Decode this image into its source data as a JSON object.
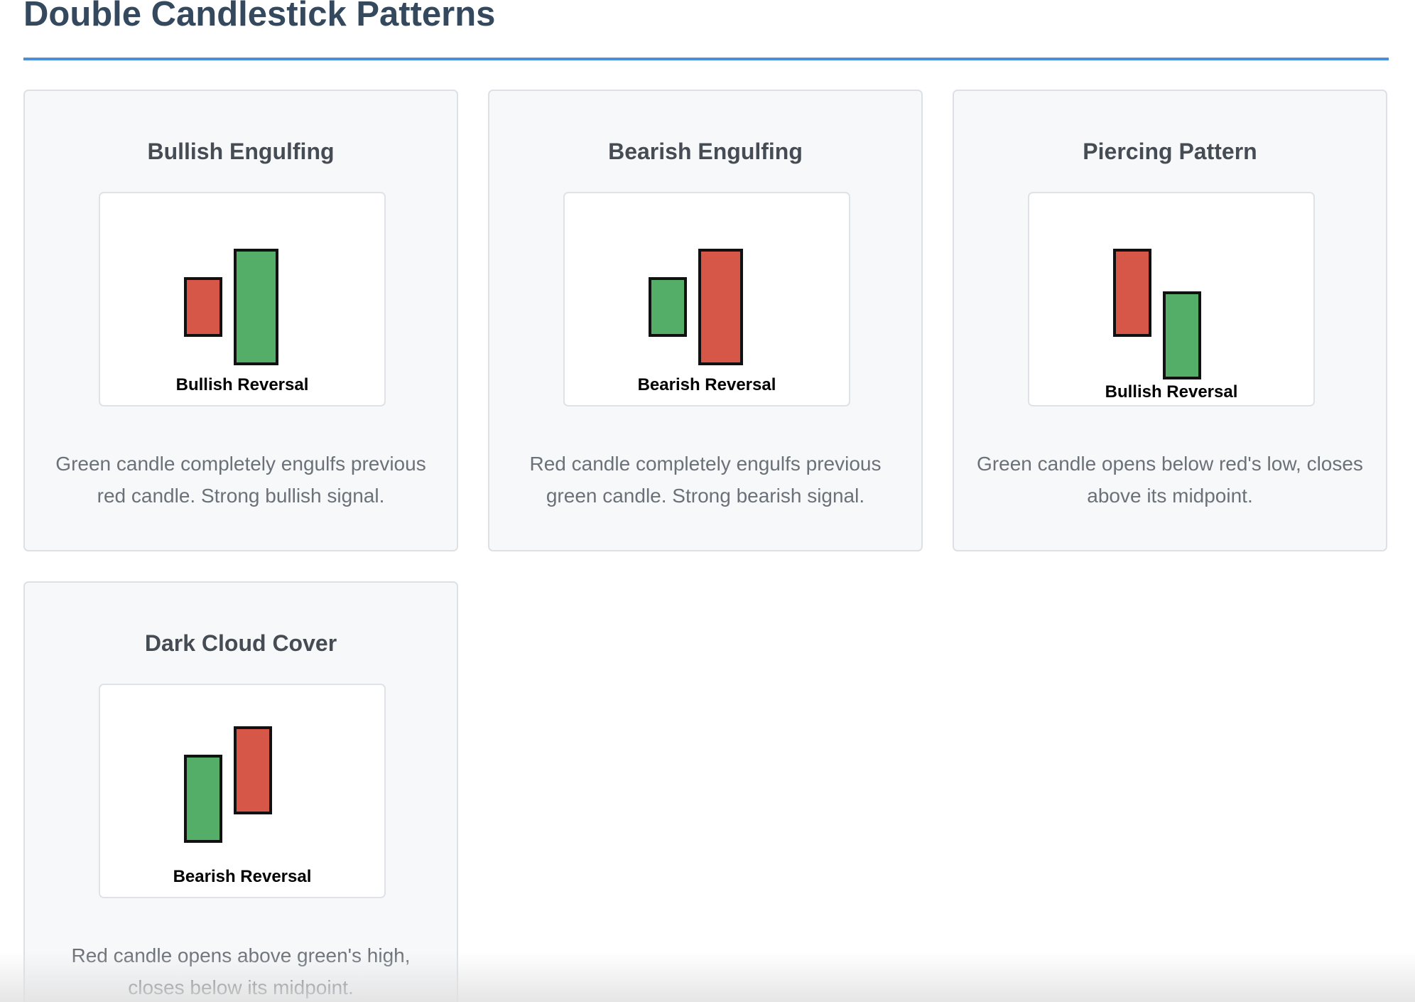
{
  "page": {
    "title": "Double Candlestick Patterns"
  },
  "colors": {
    "accent": "#4a90d9",
    "bullish_candle": "#55ae67",
    "bearish_candle": "#d65747",
    "candle_border": "#111111"
  },
  "patterns": [
    {
      "name": "Bullish Engulfing",
      "signal": "Bullish Reversal",
      "description": "Green candle completely engulfs previous red candle. Strong bullish signal.",
      "candles": [
        "bearish",
        "bullish"
      ]
    },
    {
      "name": "Bearish Engulfing",
      "signal": "Bearish Reversal",
      "description": "Red candle completely engulfs previous green candle. Strong bearish signal.",
      "candles": [
        "bullish",
        "bearish"
      ]
    },
    {
      "name": "Piercing Pattern",
      "signal": "Bullish Reversal",
      "description": "Green candle opens below red's low, closes above its midpoint.",
      "candles": [
        "bearish",
        "bullish"
      ]
    },
    {
      "name": "Dark Cloud Cover",
      "signal": "Bearish Reversal",
      "description": "Red candle opens above green's high, closes below its midpoint.",
      "candles": [
        "bullish",
        "bearish"
      ]
    }
  ]
}
